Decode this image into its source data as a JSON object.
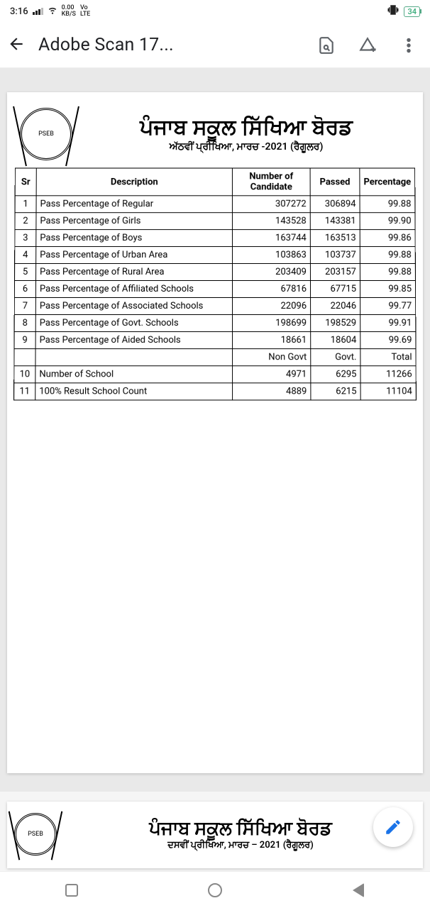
{
  "status": {
    "time": "3:16",
    "net_rate_top": "0.00",
    "net_rate_bot": "KB/S",
    "net_mode_top": "Vo",
    "net_mode_bot": "LTE",
    "battery_pct": "34"
  },
  "appbar": {
    "title": "Adobe Scan 17..."
  },
  "doc": {
    "heading_main": "ਪੰਜਾਬ ਸਕੂਲ ਸਿੱਖਿਆ ਬੋਰਡ",
    "heading_sub": "ਅੱਠਵੀਂ ਪ੍ਰੀਖਿਆ, ਮਾਰਚ -2021 (ਰੈਗੂਲਰ)",
    "columns": {
      "sr": "Sr",
      "desc": "Description",
      "num": "Number of Candidate",
      "passed": "Passed",
      "pct": "Percentage"
    },
    "rows": [
      {
        "sr": "1",
        "desc": "Pass Percentage of Regular",
        "num": "307272",
        "passed": "306894",
        "pct": "99.88"
      },
      {
        "sr": "2",
        "desc": "Pass  Percentage of Girls",
        "num": "143528",
        "passed": "143381",
        "pct": "99.90"
      },
      {
        "sr": "3",
        "desc": "Pass  Percentage of Boys",
        "num": "163744",
        "passed": "163513",
        "pct": "99.86"
      },
      {
        "sr": "4",
        "desc": "Pass  Percentage of Urban Area",
        "num": "103863",
        "passed": "103737",
        "pct": "99.88"
      },
      {
        "sr": "5",
        "desc": "Pass  Percentage of Rural Area",
        "num": "203409",
        "passed": "203157",
        "pct": "99.88"
      },
      {
        "sr": "6",
        "desc": "Pass Percentage of Affiliated Schools",
        "num": "67816",
        "passed": "67715",
        "pct": "99.85"
      },
      {
        "sr": "7",
        "desc": "Pass Percentage of Associated Schools",
        "num": "22096",
        "passed": "22046",
        "pct": "99.77"
      },
      {
        "sr": "8",
        "desc": "Pass Percentage of Govt. Schools",
        "num": "198699",
        "passed": "198529",
        "pct": "99.91"
      },
      {
        "sr": "9",
        "desc": "Pass Percentage of Aided Schools",
        "num": "18661",
        "passed": "18604",
        "pct": "99.69"
      }
    ],
    "sub_header": {
      "num": "Non Govt",
      "passed": "Govt.",
      "pct": "Total"
    },
    "rows2": [
      {
        "sr": "10",
        "desc": "Number of School",
        "num": "4971",
        "passed": "6295",
        "pct": "11266"
      },
      {
        "sr": "11",
        "desc": "100% Result School Count",
        "num": "4889",
        "passed": "6215",
        "pct": "11104"
      }
    ]
  },
  "page2": {
    "heading_main": "ਪੰਜਾਬ ਸਕੂਲ ਸਿੱਖਿਆ ਬੋਰਡ",
    "heading_sub": "ਦਸਵੀਂ ਪ੍ਰੀਖਿਆ, ਮਾਰਚ – 2021 (ਰੈਗੂਲਰ)"
  }
}
